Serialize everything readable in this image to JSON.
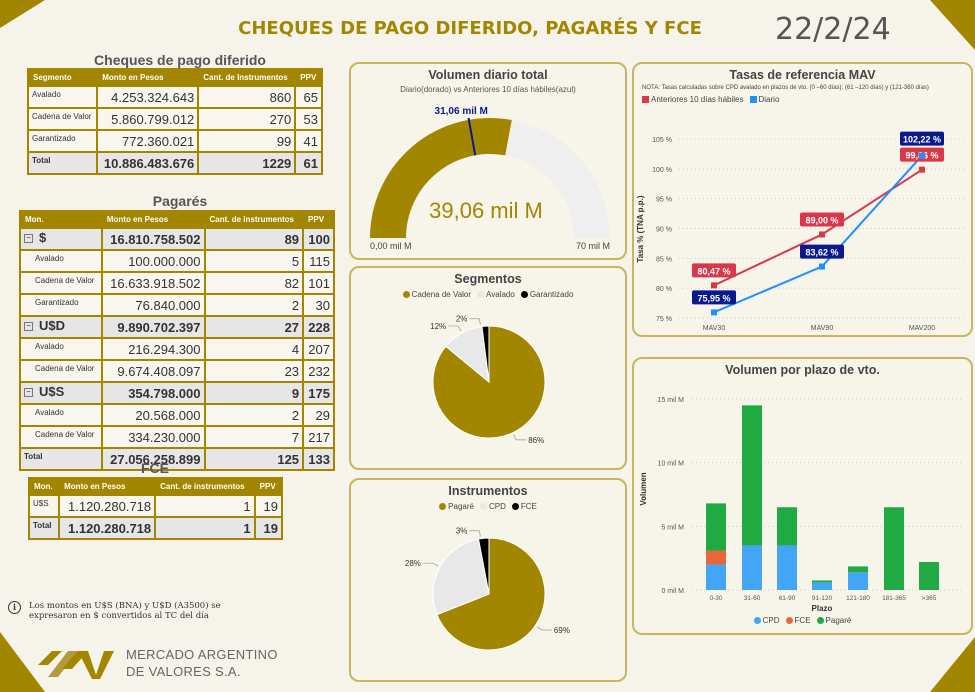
{
  "header": {
    "title": "CHEQUES DE PAGO DIFERIDO, PAGARÉS Y FCE",
    "date": "22/2/24"
  },
  "cpd": {
    "title": "Cheques de pago diferido",
    "columns": [
      "Segmento",
      "Monto en Pesos",
      "Cant. de Instrumentos",
      "PPV"
    ],
    "rows": [
      [
        "Avalado",
        "4.253.324.643",
        "860",
        "65"
      ],
      [
        "Cadena de Valor",
        "5.860.799.012",
        "270",
        "53"
      ],
      [
        "Garantizado",
        "772.360.021",
        "99",
        "41"
      ]
    ],
    "total": [
      "Total",
      "10.886.483.676",
      "1229",
      "61"
    ]
  },
  "pagares": {
    "title": "Pagarés",
    "columns": [
      "Mon.",
      "Monto en Pesos",
      "Cant. de instrumentos",
      "PPV"
    ],
    "groups": [
      {
        "row": [
          "$",
          "16.810.758.502",
          "89",
          "100"
        ],
        "rows": [
          [
            "Avalado",
            "100.000.000",
            "5",
            "115"
          ],
          [
            "Cadena de Valor",
            "16.633.918.502",
            "82",
            "101"
          ],
          [
            "Garantizado",
            "76.840.000",
            "2",
            "30"
          ]
        ]
      },
      {
        "row": [
          "U$D",
          "9.890.702.397",
          "27",
          "228"
        ],
        "rows": [
          [
            "Avalado",
            "216.294.300",
            "4",
            "207"
          ],
          [
            "Cadena de Valor",
            "9.674.408.097",
            "23",
            "232"
          ]
        ]
      },
      {
        "row": [
          "U$S",
          "354.798.000",
          "9",
          "175"
        ],
        "rows": [
          [
            "Avalado",
            "20.568.000",
            "2",
            "29"
          ],
          [
            "Cadena de Valor",
            "334.230.000",
            "7",
            "217"
          ]
        ]
      }
    ],
    "total": [
      "Total",
      "27.056.258.899",
      "125",
      "133"
    ]
  },
  "fce": {
    "title": "FCE",
    "columns": [
      "Mon.",
      "Monto en Pesos",
      "Cant. de instrumentos",
      "PPV"
    ],
    "rows": [
      [
        "U$S",
        "1.120.280.718",
        "1",
        "19"
      ]
    ],
    "total": [
      "Total",
      "1.120.280.718",
      "1",
      "19"
    ]
  },
  "note": "Los montos en U$S (BNA) y U$D (A3500) se expresaron en $ convertidos al TC del día",
  "logo": {
    "line1": "MERCADO ARGENTINO",
    "line2": "DE VALORES S.A."
  },
  "colors": {
    "gold": "#a38600",
    "red": "#d9384a",
    "blue": "#1e90ff",
    "navy": "#0a1a8c",
    "cpd": "#42a5f5",
    "fce": "#e8673a",
    "pagare": "#1faa44"
  },
  "chart_data": [
    {
      "type": "gauge",
      "title": "Volumen diario total",
      "subtitle": "Diario(dorado) vs Anteriores 10 días hábiles(azul)",
      "value": 39.06,
      "value_label": "39,06 mil M",
      "target": 31.06,
      "target_label": "31,06 mil M",
      "min": 0,
      "max": 70,
      "min_label": "0,00 mil M",
      "max_label": "70 mil M"
    },
    {
      "type": "pie",
      "title": "Segmentos",
      "labels": [
        "Cadena de Valor",
        "Avalado",
        "Garantizado"
      ],
      "values": [
        86,
        12,
        2
      ],
      "value_labels": [
        "86%",
        "12%",
        "2%"
      ],
      "colors": [
        "#a38600",
        "#e8e8e8",
        "#000000"
      ]
    },
    {
      "type": "pie",
      "title": "Instrumentos",
      "labels": [
        "Pagaré",
        "CPD",
        "FCE"
      ],
      "values": [
        69,
        28,
        3
      ],
      "value_labels": [
        "69%",
        "28%",
        "3%"
      ],
      "colors": [
        "#a38600",
        "#e8e8e8",
        "#000000"
      ]
    },
    {
      "type": "line",
      "title": "Tasas de referencia MAV",
      "note": "NOTA: Tasas calculadas sobre CPD avalado en plazos de vto. (0 –60 días); (61 –120 días) y (121-360 días)",
      "categories": [
        "MAV30",
        "MAV90",
        "MAV200"
      ],
      "ylabel": "Tasa % (TNA p.p.)",
      "ylim": [
        75,
        105
      ],
      "yticks": [
        "75 %",
        "80 %",
        "85 %",
        "90 %",
        "95 %",
        "100 %",
        "105 %"
      ],
      "series": [
        {
          "name": "Anteriores 10 días hábiles",
          "values": [
            80.47,
            89.0,
            99.86
          ],
          "labels": [
            "80,47 %",
            "89,00 %",
            "99,86 %"
          ]
        },
        {
          "name": "Diario",
          "values": [
            75.95,
            83.62,
            102.22
          ],
          "labels": [
            "75,95 %",
            "83,62 %",
            "102,22 %"
          ]
        }
      ]
    },
    {
      "type": "bar",
      "stacked": true,
      "title": "Volumen por plazo de vto.",
      "xlabel": "Plazo",
      "ylabel": "Volumen",
      "ylim": [
        0,
        15
      ],
      "yticks": [
        "0 mil M",
        "5 mil M",
        "10 mil M",
        "15 mil M"
      ],
      "categories": [
        "0-30",
        "31-60",
        "61-90",
        "91-120",
        "121-180",
        "181-365",
        ">365"
      ],
      "series": [
        {
          "name": "CPD",
          "values": [
            2.0,
            3.5,
            3.5,
            0.6,
            1.4,
            0,
            0
          ]
        },
        {
          "name": "FCE",
          "values": [
            1.1,
            0,
            0,
            0,
            0,
            0,
            0
          ]
        },
        {
          "name": "Pagaré",
          "values": [
            3.7,
            11.0,
            3.0,
            0.15,
            0.45,
            6.5,
            2.2
          ]
        }
      ]
    }
  ]
}
